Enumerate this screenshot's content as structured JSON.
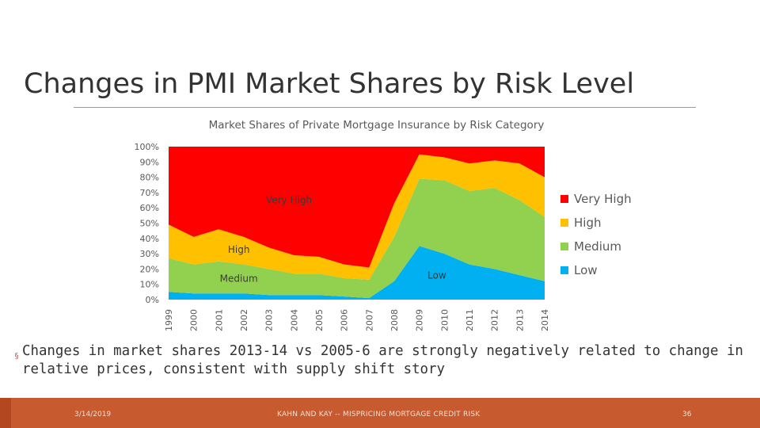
{
  "slide": {
    "title": "Changes in PMI Market Shares by Risk Level",
    "bullet": "Changes in market shares 2013-14 vs 2005-6 are strongly negatively related to change in relative prices, consistent with supply shift story",
    "bullet_marker": "§",
    "footer": {
      "date": "3/14/2019",
      "center": "KAHN AND KAY -- MISPRICING MORTGAGE CREDIT RISK",
      "page": "36"
    },
    "colors": {
      "footer_bar": "#c75a2e",
      "title_text": "#333333"
    }
  },
  "chart_data": {
    "type": "area",
    "stacked": true,
    "title": "Market Shares of Private Mortgage Insurance by Risk Category",
    "x": [
      "1999",
      "2000",
      "2001",
      "2002",
      "2003",
      "2004",
      "2005",
      "2006",
      "2007",
      "2008",
      "2009",
      "2010",
      "2011",
      "2012",
      "2013",
      "2014"
    ],
    "y_ticks": [
      "0%",
      "10%",
      "20%",
      "30%",
      "40%",
      "50%",
      "60%",
      "70%",
      "80%",
      "90%",
      "100%"
    ],
    "ylim": [
      0,
      100
    ],
    "series": [
      {
        "name": "Low",
        "color": "#00b0f0",
        "values": [
          5,
          4,
          4,
          4,
          3,
          3,
          3,
          2,
          1,
          12,
          35,
          30,
          23,
          20,
          16,
          12
        ]
      },
      {
        "name": "Medium",
        "color": "#92d050",
        "values": [
          22,
          19,
          21,
          19,
          17,
          14,
          14,
          12,
          12,
          29,
          44,
          48,
          48,
          53,
          49,
          42
        ]
      },
      {
        "name": "High",
        "color": "#ffc000",
        "values": [
          22,
          18,
          21,
          18,
          14,
          12,
          11,
          9,
          8,
          22,
          16,
          15,
          18,
          18,
          24,
          26
        ]
      },
      {
        "name": "Very High",
        "color": "#ff0000",
        "values": [
          51,
          59,
          54,
          59,
          66,
          71,
          72,
          77,
          79,
          37,
          5,
          7,
          11,
          9,
          11,
          20
        ]
      }
    ],
    "area_labels": [
      {
        "series": "Very High",
        "text": "Very High"
      },
      {
        "series": "High",
        "text": "High"
      },
      {
        "series": "Medium",
        "text": "Medium"
      },
      {
        "series": "Low",
        "text": "Low"
      }
    ],
    "legend": [
      "Very High",
      "High",
      "Medium",
      "Low"
    ],
    "legend_position": "right"
  }
}
